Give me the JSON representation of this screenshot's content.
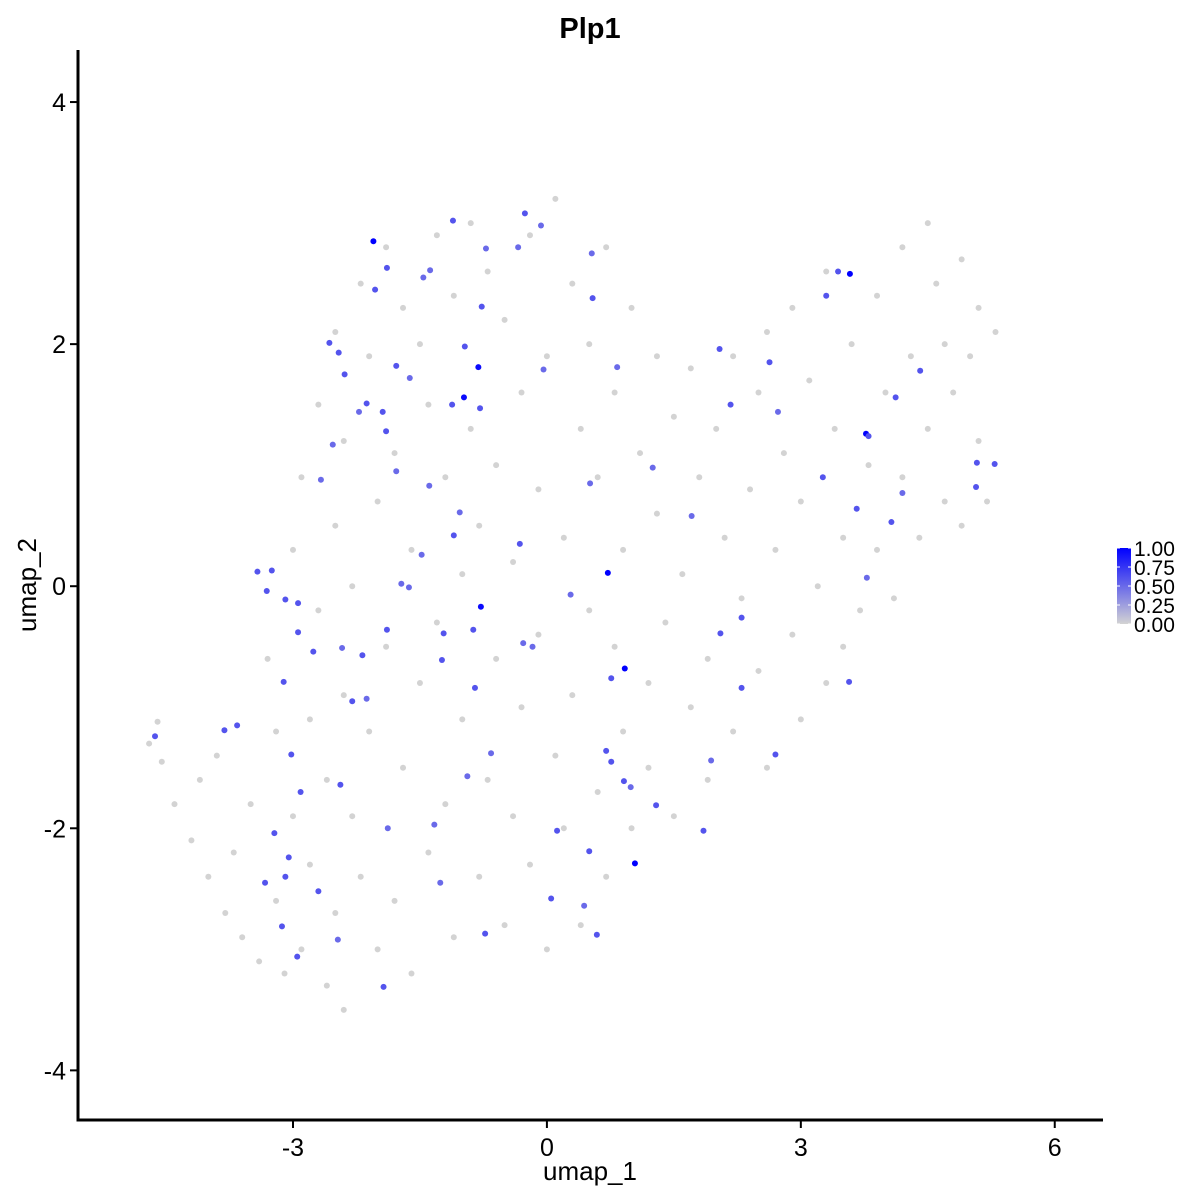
{
  "chart_data": {
    "type": "scatter",
    "title": "Plp1",
    "x_label": "umap_1",
    "y_label": "umap_2",
    "xlim": [
      -5.54,
      6.57
    ],
    "ylim": [
      -4.41,
      4.43
    ],
    "xticks": [
      -3,
      0,
      3,
      6
    ],
    "yticks": [
      -4,
      -2,
      0,
      2,
      4
    ],
    "color_scale": {
      "low": "#d3d3d3",
      "high": "#0000ff"
    },
    "colorbar": {
      "lim": [
        0,
        1
      ],
      "ticks": [
        {
          "value": 0,
          "label": "0.00"
        },
        {
          "value": 0.25,
          "label": "0.25"
        },
        {
          "value": 0.5,
          "label": "0.50"
        },
        {
          "value": 0.75,
          "label": "0.75"
        },
        {
          "value": 1,
          "label": "1.00"
        }
      ]
    },
    "x": [
      -4.7,
      -4.6,
      -4.55,
      -4.4,
      -4.2,
      -4.1,
      -4.0,
      -3.9,
      -3.8,
      -3.7,
      -3.6,
      -3.5,
      -3.4,
      -3.3,
      -3.2,
      -3.2,
      -3.1,
      -3.0,
      -3.0,
      -2.9,
      -2.9,
      -2.8,
      -2.8,
      -2.7,
      -2.7,
      -2.6,
      -2.6,
      -2.5,
      -2.5,
      -2.5,
      -2.4,
      -2.4,
      -2.4,
      -2.3,
      -2.3,
      -2.2,
      -2.2,
      -2.1,
      -2.1,
      -2.0,
      -2.0,
      -1.9,
      -1.9,
      -1.8,
      -1.8,
      -1.7,
      -1.7,
      -1.6,
      -1.6,
      -1.5,
      -1.5,
      -1.4,
      -1.4,
      -1.3,
      -1.3,
      -1.2,
      -1.2,
      -1.1,
      -1.1,
      -1.0,
      -1.0,
      -0.9,
      -0.9,
      -0.8,
      -0.8,
      -0.7,
      -0.7,
      -0.6,
      -0.6,
      -0.5,
      -0.5,
      -0.4,
      -0.4,
      -0.3,
      -0.3,
      -0.2,
      -0.2,
      -0.1,
      -0.1,
      0.0,
      0.0,
      0.1,
      0.1,
      0.2,
      0.2,
      0.3,
      0.3,
      0.4,
      0.4,
      0.5,
      0.5,
      0.6,
      0.6,
      0.7,
      0.7,
      0.8,
      0.8,
      0.9,
      0.9,
      1.0,
      1.0,
      1.1,
      1.2,
      1.2,
      1.3,
      1.3,
      1.4,
      1.5,
      1.5,
      1.6,
      1.7,
      1.7,
      1.8,
      1.9,
      1.9,
      2.0,
      2.1,
      2.2,
      2.2,
      2.3,
      2.4,
      2.5,
      2.5,
      2.6,
      2.6,
      2.7,
      2.8,
      2.9,
      2.9,
      3.0,
      3.0,
      3.1,
      3.2,
      3.3,
      3.3,
      3.4,
      3.5,
      3.5,
      3.6,
      3.7,
      3.8,
      3.9,
      3.9,
      4.0,
      4.1,
      4.2,
      4.2,
      4.3,
      4.4,
      4.5,
      4.5,
      4.6,
      4.7,
      4.7,
      4.8,
      4.9,
      4.9,
      5.0,
      5.1,
      5.1,
      5.2,
      5.3,
      -2.05,
      -1.89,
      -2.03,
      -1.38,
      -1.46,
      -1.11,
      -0.26,
      -0.34,
      -0.07,
      -0.72,
      0.53,
      0.54,
      -0.77,
      -2.57,
      -2.46,
      -2.39,
      -1.78,
      -1.62,
      -0.97,
      -0.81,
      -0.98,
      -1.12,
      -0.79,
      -0.04,
      0.83,
      -2.13,
      -1.94,
      -1.9,
      -2.22,
      -2.53,
      -1.78,
      -2.67,
      -1.39,
      -1.03,
      -1.1,
      -1.48,
      -0.32,
      0.51,
      1.25,
      1.71,
      0.72,
      -0.78,
      -1.22,
      -1.24,
      -1.72,
      -1.63,
      -1.89,
      -2.18,
      -2.42,
      -2.76,
      -2.94,
      -2.94,
      -3.09,
      -3.25,
      -3.31,
      -3.42,
      -3.11,
      -2.3,
      -2.13,
      -0.87,
      -0.85,
      -0.28,
      -0.17,
      0.28,
      0.92,
      0.76,
      2.05,
      2.3,
      2.3,
      0.7,
      0.76,
      0.91,
      0.99,
      1.29,
      1.94,
      2.7,
      1.85,
      -0.66,
      -0.94,
      -1.33,
      -1.88,
      -2.44,
      -2.91,
      -3.02,
      -3.66,
      -3.81,
      -4.63,
      -3.22,
      -3.05,
      -3.09,
      -3.33,
      -3.13,
      -2.95,
      -2.7,
      -2.47,
      -1.93,
      -1.26,
      -0.73,
      0.05,
      0.12,
      0.5,
      1.04,
      0.44,
      0.59,
      3.58,
      3.44,
      3.3,
      2.04,
      2.63,
      2.73,
      2.17,
      3.77,
      3.8,
      4.12,
      4.41,
      4.2,
      4.07,
      3.66,
      3.26,
      3.78,
      5.08,
      5.07,
      5.29,
      3.57
    ],
    "y": [
      -1.3,
      -1.12,
      -1.45,
      -1.8,
      -2.1,
      -1.6,
      -2.4,
      -1.4,
      -2.7,
      -2.2,
      -2.9,
      -1.8,
      -3.1,
      -0.6,
      -1.2,
      -2.6,
      -3.2,
      0.3,
      -1.9,
      0.9,
      -3.0,
      -1.1,
      -2.3,
      1.5,
      -0.2,
      -3.3,
      -1.6,
      2.1,
      0.5,
      -2.7,
      1.2,
      -0.9,
      -3.5,
      -1.9,
      0.0,
      2.5,
      -2.4,
      1.9,
      -1.2,
      0.7,
      -3.0,
      2.8,
      -0.5,
      1.1,
      -2.6,
      2.3,
      -1.5,
      0.3,
      -3.2,
      2.0,
      -0.8,
      1.5,
      -2.2,
      2.9,
      -0.3,
      0.9,
      -1.8,
      2.4,
      -2.9,
      0.1,
      -1.1,
      3.0,
      1.3,
      -2.4,
      0.5,
      2.6,
      -1.6,
      1.0,
      -0.6,
      2.2,
      -2.8,
      0.2,
      -1.9,
      1.6,
      -1.0,
      2.9,
      -2.3,
      0.8,
      -0.4,
      1.9,
      -3.0,
      3.2,
      -1.4,
      0.4,
      -2.0,
      2.5,
      -0.9,
      1.3,
      -2.8,
      -0.2,
      2.0,
      -1.7,
      0.9,
      2.8,
      -2.4,
      -0.5,
      1.6,
      -1.2,
      0.3,
      2.3,
      -2.0,
      1.1,
      -0.8,
      -1.5,
      0.6,
      1.9,
      -0.3,
      1.4,
      -1.9,
      0.1,
      -1.0,
      1.8,
      0.9,
      -0.6,
      -1.6,
      1.3,
      0.4,
      -1.2,
      1.9,
      -0.1,
      0.8,
      -0.7,
      1.6,
      2.1,
      -1.5,
      0.3,
      1.1,
      -0.4,
      2.3,
      -1.1,
      0.7,
      1.7,
      0.0,
      -0.8,
      2.6,
      1.3,
      0.4,
      -0.5,
      2.0,
      -0.2,
      1.0,
      2.4,
      0.3,
      1.6,
      -0.1,
      2.8,
      0.9,
      1.9,
      0.4,
      3.0,
      1.3,
      2.5,
      0.7,
      2.0,
      1.6,
      2.7,
      0.5,
      1.9,
      2.3,
      1.2,
      0.7,
      2.1,
      2.85,
      2.63,
      2.45,
      2.61,
      2.55,
      3.02,
      3.08,
      2.8,
      2.98,
      2.79,
      2.75,
      2.38,
      2.31,
      2.01,
      1.93,
      1.75,
      1.82,
      1.72,
      1.98,
      1.81,
      1.56,
      1.5,
      1.47,
      1.79,
      1.81,
      1.51,
      1.44,
      1.28,
      1.44,
      1.17,
      0.95,
      0.88,
      0.83,
      0.61,
      0.42,
      0.26,
      0.35,
      0.85,
      0.98,
      0.58,
      0.11,
      -0.17,
      -0.39,
      -0.61,
      0.02,
      -0.01,
      -0.36,
      -0.57,
      -0.51,
      -0.54,
      -0.14,
      -0.38,
      -0.11,
      0.13,
      -0.04,
      0.12,
      -0.79,
      -0.95,
      -0.93,
      -0.36,
      -0.84,
      -0.47,
      -0.5,
      -0.07,
      -0.68,
      -0.76,
      -0.39,
      -0.26,
      -0.84,
      -1.36,
      -1.45,
      -1.61,
      -1.66,
      -1.81,
      -1.44,
      -1.39,
      -2.02,
      -1.38,
      -1.57,
      -1.97,
      -2.0,
      -1.64,
      -1.7,
      -1.39,
      -1.15,
      -1.19,
      -1.24,
      -2.04,
      -2.24,
      -2.4,
      -2.45,
      -2.81,
      -3.06,
      -2.52,
      -2.92,
      -3.31,
      -2.45,
      -2.87,
      -2.58,
      -2.02,
      -2.19,
      -2.29,
      -2.64,
      -2.88,
      2.58,
      2.6,
      2.4,
      1.96,
      1.85,
      1.44,
      1.5,
      1.26,
      1.24,
      1.56,
      1.78,
      0.77,
      0.53,
      0.64,
      0.9,
      0.07,
      1.02,
      0.82,
      1.01,
      -0.79
    ],
    "values": [
      0,
      0,
      0,
      0,
      0,
      0,
      0,
      0,
      0,
      0,
      0,
      0,
      0,
      0,
      0,
      0,
      0,
      0,
      0,
      0,
      0,
      0,
      0,
      0,
      0,
      0,
      0,
      0,
      0,
      0,
      0,
      0,
      0,
      0,
      0,
      0,
      0,
      0,
      0,
      0,
      0,
      0,
      0,
      0,
      0,
      0,
      0,
      0,
      0,
      0,
      0,
      0,
      0,
      0,
      0,
      0,
      0,
      0,
      0,
      0,
      0,
      0,
      0,
      0,
      0,
      0,
      0,
      0,
      0,
      0,
      0,
      0,
      0,
      0,
      0,
      0,
      0,
      0,
      0,
      0,
      0,
      0,
      0,
      0,
      0,
      0,
      0,
      0,
      0,
      0,
      0,
      0,
      0,
      0,
      0,
      0,
      0,
      0,
      0,
      0,
      0,
      0,
      0,
      0,
      0,
      0,
      0,
      0,
      0,
      0,
      0,
      0,
      0,
      0,
      0,
      0,
      0,
      0,
      0,
      0,
      0,
      0,
      0,
      0,
      0,
      0,
      0,
      0,
      0,
      0,
      0,
      0,
      0,
      0,
      0,
      0,
      0,
      0,
      0,
      0,
      0,
      0,
      0,
      0,
      0,
      0,
      0,
      0,
      0,
      0,
      0,
      0,
      0,
      0,
      0,
      0,
      0,
      0,
      0,
      0,
      0,
      0,
      1,
      0.6,
      0.6,
      0.5,
      0.5,
      0.6,
      0.6,
      0.5,
      0.5,
      0.5,
      0.5,
      0.6,
      0.6,
      0.6,
      0.6,
      0.6,
      0.6,
      0.5,
      0.6,
      0.95,
      0.95,
      0.6,
      0.6,
      0.5,
      0.5,
      0.6,
      0.6,
      0.6,
      0.5,
      0.5,
      0.5,
      0.5,
      0.5,
      0.5,
      0.6,
      0.5,
      0.6,
      0.5,
      0.5,
      0.5,
      1,
      0.95,
      0.6,
      0.6,
      0.5,
      0.5,
      0.6,
      0.6,
      0.5,
      0.6,
      0.6,
      0.6,
      0.6,
      0.6,
      0.6,
      0.6,
      0.6,
      0.6,
      0.5,
      0.6,
      0.6,
      0.5,
      0.5,
      0.5,
      1,
      0.6,
      0.6,
      0.6,
      0.6,
      0.6,
      0.6,
      0.6,
      0.5,
      0.6,
      0.5,
      0.6,
      0.6,
      0.5,
      0.5,
      0.5,
      0.5,
      0.6,
      0.6,
      0.6,
      0.6,
      0.6,
      0.6,
      0.6,
      0.6,
      0.6,
      0.6,
      0.6,
      0.6,
      0.6,
      0.5,
      0.6,
      0.5,
      0.6,
      0.6,
      0.6,
      0.6,
      1,
      0.5,
      0.6,
      1,
      0.6,
      0.6,
      0.6,
      0.6,
      0.5,
      0.6,
      1,
      0.6,
      0.6,
      0.6,
      0.5,
      0.6,
      0.6,
      0.6,
      0.5,
      0.6,
      0.6,
      0.6,
      0.6
    ]
  }
}
